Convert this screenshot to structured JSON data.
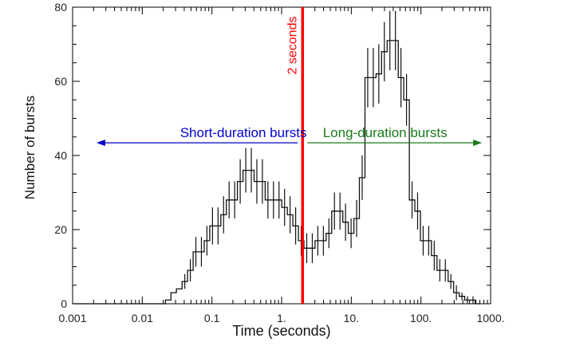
{
  "chart_data": {
    "type": "line",
    "xlabel": "Time (seconds)",
    "ylabel": "Number of bursts",
    "x_scale": "log",
    "xlim": [
      0.001,
      1000
    ],
    "ylim": [
      0,
      80
    ],
    "x_tick_labels": [
      {
        "value": 0.001,
        "label": "0.001"
      },
      {
        "value": 0.01,
        "label": "0.01"
      },
      {
        "value": 0.1,
        "label": "0.1"
      },
      {
        "value": 1,
        "label": "1."
      },
      {
        "value": 10,
        "label": "10."
      },
      {
        "value": 100,
        "label": "100."
      },
      {
        "value": 1000,
        "label": "1000."
      }
    ],
    "y_tick_labels": [
      {
        "value": 0,
        "label": "0"
      },
      {
        "value": 20,
        "label": "20"
      },
      {
        "value": 40,
        "label": "40"
      },
      {
        "value": 60,
        "label": "60"
      },
      {
        "value": 80,
        "label": "80"
      }
    ],
    "grid": false,
    "histogram": {
      "bin_edges": [
        0.001,
        0.0179,
        0.0215,
        0.0258,
        0.0309,
        0.0372,
        0.0447,
        0.0537,
        0.0644,
        0.0774,
        0.0929,
        0.1117,
        0.1341,
        0.161,
        0.1934,
        0.2323,
        0.279,
        0.3351,
        0.4025,
        0.4834,
        0.5806,
        0.6974,
        0.8376,
        1.006,
        1.2083,
        1.4513,
        1.7431,
        2.0936,
        2.5145,
        3.0202,
        3.6274,
        4.3568,
        5.2328,
        6.285,
        7.5488,
        9.0667,
        10.89,
        13.08,
        15.71,
        18.87,
        22.66,
        27.21,
        32.69,
        39.26,
        47.15,
        56.63,
        68.02,
        81.7,
        98.13,
        117.86,
        141.56,
        170.02,
        204.21,
        245.27,
        294.59,
        353.82,
        424.97,
        510.42,
        613.05,
        700.0
      ],
      "counts": [
        0,
        0,
        1,
        3,
        4,
        6,
        9,
        14,
        14,
        17,
        21,
        21,
        24,
        28,
        28,
        33,
        36,
        36,
        33,
        33,
        28,
        28,
        28,
        26,
        24,
        21,
        17,
        15,
        15,
        17,
        17,
        19,
        25,
        25,
        22,
        19,
        23,
        34,
        61,
        61,
        62,
        68,
        71,
        71,
        61,
        55,
        28,
        25,
        17,
        17,
        13,
        9,
        9,
        6,
        3,
        2,
        1,
        1,
        0
      ],
      "errors": [
        0,
        0,
        0,
        0,
        0,
        2,
        3,
        4,
        4,
        4,
        5,
        5,
        5,
        5,
        5,
        6,
        6,
        6,
        6,
        6,
        5,
        5,
        5,
        5,
        5,
        5,
        4,
        4,
        4,
        4,
        4,
        4,
        5,
        5,
        5,
        4,
        5,
        6,
        8,
        8,
        8,
        8,
        8,
        8,
        8,
        7,
        5,
        5,
        4,
        4,
        4,
        3,
        3,
        2,
        2,
        1,
        1,
        1,
        0
      ]
    },
    "annotations": {
      "divider": {
        "x": 2,
        "label": "2 seconds",
        "color": "#ff0000"
      },
      "short": {
        "label": "Short-duration bursts",
        "color": "#0000cc",
        "y": 46,
        "arrow_to_x": 0.0022
      },
      "long": {
        "label": "Long-duration bursts",
        "color": "#1a7a1a",
        "y": 46,
        "arrow_to_x": 750
      }
    }
  }
}
